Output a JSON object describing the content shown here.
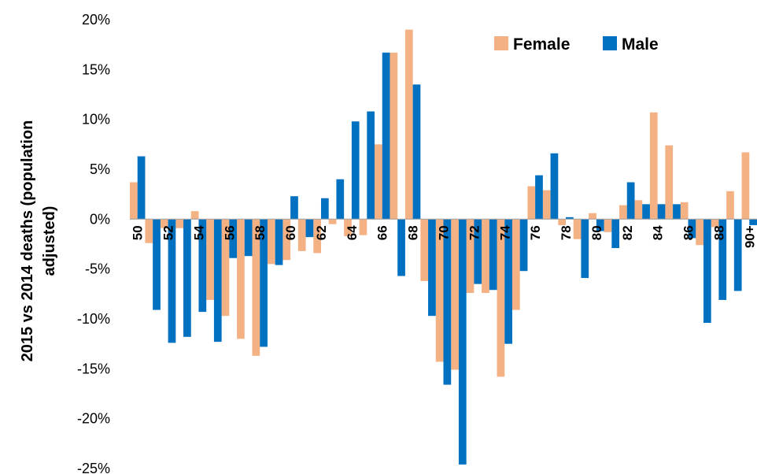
{
  "chart_data": {
    "type": "bar",
    "ylabel": "2015 vs 2014 deaths (population adjusted)",
    "ylabel_lines": [
      "2015 vs 2014 deaths (population",
      "adjusted)"
    ],
    "xlabel": "",
    "ylim": [
      -25,
      20
    ],
    "y_ticks": [
      20,
      15,
      10,
      5,
      0,
      -5,
      -10,
      -15,
      -20,
      -25
    ],
    "y_tick_labels": [
      "20%",
      "15%",
      "10%",
      "5%",
      "0%",
      "-5%",
      "-10%",
      "-15%",
      "-20%",
      "-25%"
    ],
    "legend_position": "top-right",
    "categories": [
      "50",
      "51",
      "52",
      "53",
      "54",
      "55",
      "56",
      "57",
      "58",
      "59",
      "60",
      "61",
      "62",
      "63",
      "64",
      "65",
      "66",
      "67",
      "68",
      "69",
      "70",
      "71",
      "72",
      "73",
      "74",
      "75",
      "76",
      "77",
      "78",
      "79",
      "80",
      "81",
      "82",
      "83",
      "84",
      "85",
      "86",
      "87",
      "88",
      "89",
      "90+"
    ],
    "x_tick_labels": [
      "50",
      "",
      "52",
      "",
      "54",
      "",
      "56",
      "",
      "58",
      "",
      "60",
      "",
      "62",
      "",
      "64",
      "",
      "66",
      "",
      "68",
      "",
      "70",
      "",
      "72",
      "",
      "74",
      "",
      "76",
      "",
      "78",
      "",
      "80",
      "",
      "82",
      "",
      "84",
      "",
      "86",
      "",
      "88",
      "",
      "90+"
    ],
    "series": [
      {
        "name": "Female",
        "color": "#F4B183",
        "values": [
          3.7,
          -2.4,
          -0.9,
          -0.9,
          0.8,
          -8.1,
          -9.7,
          -12.0,
          -13.7,
          -4.5,
          -4.1,
          -3.2,
          -3.4,
          -0.5,
          -1.7,
          -1.6,
          7.5,
          16.7,
          19.0,
          -6.2,
          -14.3,
          -15.1,
          -7.4,
          -7.4,
          -15.8,
          -9.1,
          3.3,
          2.9,
          -0.6,
          -2.0,
          0.6,
          -1.3,
          1.4,
          1.9,
          10.7,
          7.4,
          1.7,
          -2.6,
          -0.8,
          2.8,
          6.7
        ]
      },
      {
        "name": "Male",
        "color": "#0070C0",
        "values": [
          6.3,
          -9.1,
          -12.4,
          -11.8,
          -9.3,
          -12.3,
          -3.9,
          -3.7,
          -12.8,
          -4.6,
          2.3,
          -1.8,
          2.1,
          4.0,
          9.8,
          10.8,
          16.7,
          -5.7,
          13.5,
          -9.7,
          -16.6,
          -24.6,
          -6.5,
          -7.1,
          -12.5,
          -5.2,
          4.4,
          6.6,
          0.2,
          -5.9,
          -1.2,
          -2.9,
          3.7,
          1.5,
          1.5,
          1.5,
          -1.9,
          -10.4,
          -8.1,
          -7.2,
          -0.6
        ]
      }
    ]
  }
}
